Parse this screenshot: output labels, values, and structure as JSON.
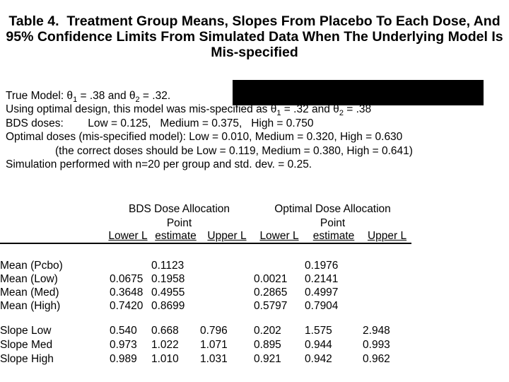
{
  "title": {
    "line1": "Table 4.  Treatment Group Means, Slopes From Placebo To Each Dose, And",
    "line2": "95% Confidence Limits From Simulated Data When The Underlying Model Is",
    "line3": "Mis-specified"
  },
  "notes": {
    "true_model": {
      "a": "True Model: θ",
      "sub1": "1",
      "b": " = .38 and θ",
      "sub2": "2",
      "c": " = .32."
    },
    "mis_specified": {
      "a": "Using optimal design, this model was mis-specified as θ",
      "sub1": "1",
      "b": " = .32 and θ",
      "sub2": "2",
      "c": " = .38"
    },
    "bds_doses": "BDS doses:        Low = 0.125,   Medium = 0.375,   High = 0.750",
    "optimal_doses": "Optimal doses (mis-specified model): Low = 0.010, Medium = 0.320, High = 0.630",
    "correct_doses": "(the correct doses should be Low = 0.119, Medium = 0.380, High = 0.641)",
    "simulation": "Simulation performed with n=20 per group and std. dev. = 0.25."
  },
  "table": {
    "group_headers": [
      "BDS Dose Allocation",
      "Optimal Dose Allocation"
    ],
    "point_label": "Point",
    "col_headers": [
      "Lower L",
      "estimate",
      "Upper L",
      "Lower L",
      "estimate",
      "Upper L"
    ],
    "rows": [
      {
        "label": "Mean (Pcbo)",
        "values": [
          "",
          "0.1123",
          "",
          "",
          "0.1976",
          ""
        ]
      },
      {
        "label": "Mean (Low)",
        "values": [
          "0.0675",
          "0.1958",
          "",
          "0.0021",
          "0.2141",
          ""
        ]
      },
      {
        "label": "Mean (Med)",
        "values": [
          "0.3648",
          "0.4955",
          "",
          "0.2865",
          "0.4997",
          ""
        ]
      },
      {
        "label": "Mean (High)",
        "values": [
          "0.7420",
          "0.8699",
          "",
          "0.5797",
          "0.7904",
          ""
        ]
      },
      {
        "label": "Slope Low",
        "values": [
          "0.540",
          "0.668",
          "0.796",
          "0.202",
          "1.575",
          "2.948"
        ]
      },
      {
        "label": "Slope Med",
        "values": [
          "0.973",
          "1.022",
          "1.071",
          "0.895",
          "0.944",
          "0.993"
        ]
      },
      {
        "label": "Slope High",
        "values": [
          "0.989",
          "1.010",
          "1.031",
          "0.921",
          "0.942",
          "0.962"
        ]
      }
    ]
  },
  "colors": {
    "background": "#ffffff",
    "text": "#000000",
    "redaction": "#000000"
  }
}
